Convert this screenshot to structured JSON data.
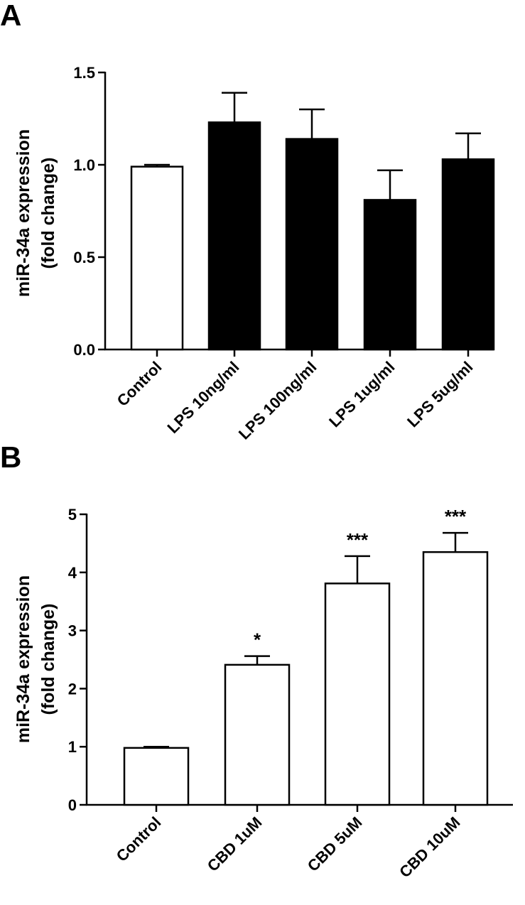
{
  "chart_data": [
    {
      "type": "bar",
      "panel": "A",
      "categories": [
        "Control",
        "LPS 10ng/ml",
        "LPS 100ng/ml",
        "LPS 1ug/ml",
        "LPS 5ug/ml"
      ],
      "values": [
        0.99,
        1.23,
        1.14,
        0.81,
        1.03
      ],
      "errors": [
        0.01,
        0.16,
        0.16,
        0.16,
        0.14
      ],
      "fills": [
        "#ffffff",
        "#000000",
        "#000000",
        "#000000",
        "#000000"
      ],
      "significance": [
        "",
        "",
        "",
        "",
        ""
      ],
      "ylabel_line1": "miR-34a expression",
      "ylabel_line2": "(fold change)",
      "ylim": [
        0,
        1.5
      ],
      "yticks": [
        "0.0",
        "0.5",
        "1.0",
        "1.5"
      ],
      "ytick_values": [
        0,
        0.5,
        1.0,
        1.5
      ],
      "grid": false
    },
    {
      "type": "bar",
      "panel": "B",
      "categories": [
        "Control",
        "CBD 1uM",
        "CBD 5uM",
        "CBD 10uM"
      ],
      "values": [
        0.98,
        2.41,
        3.81,
        4.35
      ],
      "errors": [
        0.02,
        0.15,
        0.47,
        0.33
      ],
      "fills": [
        "#ffffff",
        "#ffffff",
        "#ffffff",
        "#ffffff"
      ],
      "significance": [
        "",
        "*",
        "***",
        "***"
      ],
      "ylabel_line1": "miR-34a expression",
      "ylabel_line2": "(fold change)",
      "ylim": [
        0,
        5
      ],
      "yticks": [
        "0",
        "1",
        "2",
        "3",
        "4",
        "5"
      ],
      "ytick_values": [
        0,
        1,
        2,
        3,
        4,
        5
      ],
      "grid": false
    }
  ]
}
